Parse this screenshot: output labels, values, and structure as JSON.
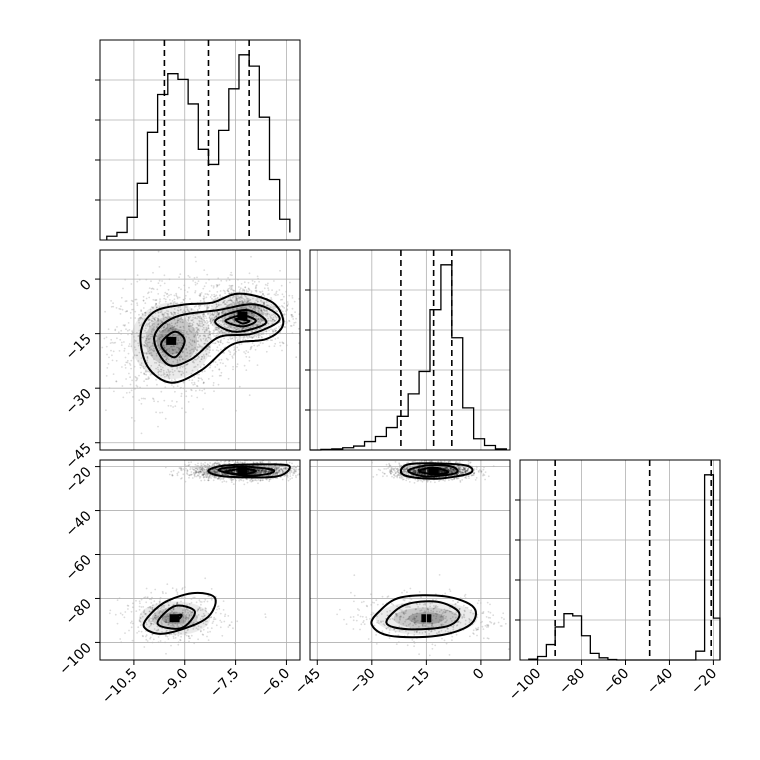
{
  "chart_data": {
    "type": "corner",
    "title": "",
    "parameters": [
      {
        "id": "p1",
        "range": [
          -11.5,
          -5.6
        ],
        "ticks": [
          -10.5,
          -9.0,
          -7.5,
          -6.0
        ],
        "tick_labels": [
          "−10.5",
          "−9.0",
          "−7.5",
          "−6.0"
        ]
      },
      {
        "id": "p2",
        "range": [
          -47,
          8
        ],
        "ticks": [
          0,
          -15,
          -30,
          -45
        ],
        "tick_labels": [
          "0",
          "−15",
          "−30",
          "−45"
        ]
      },
      {
        "id": "p3",
        "range": [
          -108,
          -17
        ],
        "ticks": [
          -20,
          -40,
          -60,
          -80,
          -100
        ],
        "tick_labels": [
          "−20",
          "−40",
          "−60",
          "−80",
          "−100"
        ]
      }
    ],
    "histograms": [
      {
        "param": "p1",
        "bins": [
          -11.3,
          -11.0,
          -10.7,
          -10.4,
          -10.1,
          -9.8,
          -9.5,
          -9.2,
          -8.9,
          -8.6,
          -8.3,
          -8.0,
          -7.7,
          -7.4,
          -7.1,
          -6.8,
          -6.5,
          -6.2,
          -5.9
        ],
        "counts": [
          2,
          4,
          12,
          30,
          57,
          77,
          88,
          85,
          72,
          48,
          40,
          58,
          80,
          98,
          92,
          65,
          32,
          11,
          4
        ],
        "quantiles": [
          -9.6,
          -8.3,
          -7.1
        ]
      },
      {
        "param": "p2",
        "bins": [
          -47,
          -44,
          -41,
          -38,
          -35,
          -32,
          -29,
          -26,
          -23,
          -20,
          -17,
          -14,
          -11,
          -8,
          -5,
          -2,
          1,
          4,
          7
        ],
        "counts": [
          0,
          1,
          2,
          4,
          7,
          15,
          24,
          40,
          60,
          100,
          140,
          250,
          330,
          200,
          75,
          20,
          8,
          2,
          0
        ],
        "quantiles": [
          -22,
          -13,
          -8
        ]
      },
      {
        "param": "p3",
        "bins": [
          -104,
          -100,
          -96,
          -92,
          -88,
          -84,
          -80,
          -76,
          -72,
          -68,
          -64,
          -60,
          -56,
          -52,
          -48,
          -44,
          -40,
          -36,
          -32,
          -28,
          -24,
          -20,
          -17
        ],
        "counts": [
          2,
          8,
          35,
          75,
          105,
          100,
          55,
          15,
          5,
          1,
          0,
          0,
          0,
          0,
          0,
          0,
          0,
          0,
          0,
          20,
          420,
          95
        ],
        "quantiles": [
          -92,
          -49,
          -21
        ]
      }
    ],
    "density_2d": [
      {
        "x": "p1",
        "y": "p2",
        "clusters": [
          {
            "center": [
              -9.4,
              -17
            ],
            "spread": [
              0.85,
              7.5
            ],
            "weight": 0.5
          },
          {
            "center": [
              -7.3,
              -10
            ],
            "spread": [
              0.7,
              4.5
            ],
            "weight": 0.5
          }
        ],
        "contours": [
          [
            [
              -10.3,
              -15
            ],
            [
              -10.1,
              -24
            ],
            [
              -9.4,
              -28.5
            ],
            [
              -8.5,
              -25
            ],
            [
              -7.6,
              -18
            ],
            [
              -6.6,
              -16.5
            ],
            [
              -6.1,
              -12.5
            ],
            [
              -6.4,
              -6.5
            ],
            [
              -7.4,
              -4
            ],
            [
              -8.2,
              -6.5
            ],
            [
              -9.0,
              -7
            ],
            [
              -9.9,
              -9
            ]
          ],
          [
            [
              -9.9,
              -16
            ],
            [
              -9.5,
              -23.5
            ],
            [
              -8.8,
              -22
            ],
            [
              -8.0,
              -16
            ],
            [
              -7.0,
              -15
            ],
            [
              -6.2,
              -11
            ],
            [
              -6.9,
              -7
            ],
            [
              -8.0,
              -8.5
            ],
            [
              -9.3,
              -10.5
            ]
          ],
          [
            [
              -9.7,
              -18
            ],
            [
              -9.3,
              -21.5
            ],
            [
              -9.0,
              -17
            ],
            [
              -9.3,
              -14.5
            ]
          ],
          [
            [
              -8.1,
              -11.5
            ],
            [
              -7.5,
              -14.5
            ],
            [
              -6.6,
              -12
            ],
            [
              -7.2,
              -8.5
            ]
          ],
          [
            [
              -7.8,
              -11.5
            ],
            [
              -7.3,
              -13
            ],
            [
              -6.9,
              -11.5
            ],
            [
              -7.3,
              -10
            ]
          ],
          [
            [
              -7.5,
              -11
            ],
            [
              -7.1,
              -11.5
            ],
            [
              -7.3,
              -12.2
            ]
          ]
        ]
      },
      {
        "x": "p1",
        "y": "p3",
        "clusters": [
          {
            "center": [
              -7.3,
              -22
            ],
            "spread": [
              0.75,
              1.8
            ],
            "weight": 0.8
          },
          {
            "center": [
              -9.3,
              -89
            ],
            "spread": [
              0.75,
              5.5
            ],
            "weight": 0.2
          }
        ],
        "contours": [
          [
            [
              -8.3,
              -22
            ],
            [
              -7.8,
              -24.5
            ],
            [
              -6.3,
              -24.5
            ],
            [
              -5.9,
              -20
            ],
            [
              -6.4,
              -19
            ],
            [
              -7.8,
              -19.5
            ]
          ],
          [
            [
              -8.0,
              -21.5
            ],
            [
              -7.3,
              -24
            ],
            [
              -6.6,
              -23.5
            ],
            [
              -6.4,
              -21.5
            ],
            [
              -7.3,
              -20
            ]
          ],
          [
            [
              -7.8,
              -22.5
            ],
            [
              -7.3,
              -23.5
            ],
            [
              -6.9,
              -22
            ],
            [
              -7.3,
              -21
            ]
          ],
          [
            [
              -10.2,
              -93
            ],
            [
              -9.6,
              -96
            ],
            [
              -8.4,
              -89.5
            ],
            [
              -8.1,
              -80
            ],
            [
              -8.7,
              -77.5
            ],
            [
              -9.5,
              -81
            ],
            [
              -10.0,
              -87
            ]
          ],
          [
            [
              -9.8,
              -91.5
            ],
            [
              -9.1,
              -93.5
            ],
            [
              -8.7,
              -86
            ],
            [
              -9.3,
              -83.5
            ]
          ],
          [
            [
              -9.4,
              -88.5
            ],
            [
              -9.2,
              -89.5
            ],
            [
              -9.1,
              -87.5
            ]
          ]
        ]
      },
      {
        "x": "p2",
        "y": "p3",
        "clusters": [
          {
            "center": [
              -13,
              -22
            ],
            "spread": [
              5,
              1.8
            ],
            "weight": 0.8
          },
          {
            "center": [
              -15,
              -89
            ],
            "spread": [
              10,
              5.5
            ],
            "weight": 0.2
          }
        ],
        "contours": [
          [
            [
              -22,
              -22
            ],
            [
              -20,
              -24.5
            ],
            [
              -12,
              -25.5
            ],
            [
              -3,
              -23
            ],
            [
              -4,
              -19.5
            ],
            [
              -13,
              -18.5
            ],
            [
              -20,
              -19
            ]
          ],
          [
            [
              -20,
              -22
            ],
            [
              -15,
              -24.5
            ],
            [
              -7,
              -23
            ],
            [
              -8,
              -20
            ],
            [
              -15,
              -19.5
            ]
          ],
          [
            [
              -17,
              -22
            ],
            [
              -13,
              -23.5
            ],
            [
              -9,
              -22.5
            ],
            [
              -13,
              -20.5
            ]
          ],
          [
            [
              -30,
              -92
            ],
            [
              -25,
              -97
            ],
            [
              -12,
              -97
            ],
            [
              -3,
              -92
            ],
            [
              -2,
              -84
            ],
            [
              -10,
              -79
            ],
            [
              -22,
              -79.5
            ],
            [
              -28,
              -86
            ]
          ],
          [
            [
              -26,
              -91
            ],
            [
              -20,
              -94
            ],
            [
              -9,
              -92.5
            ],
            [
              -6,
              -86.5
            ],
            [
              -12,
              -81.5
            ],
            [
              -21,
              -83
            ]
          ]
        ]
      }
    ],
    "grid": true,
    "legend": "none"
  }
}
